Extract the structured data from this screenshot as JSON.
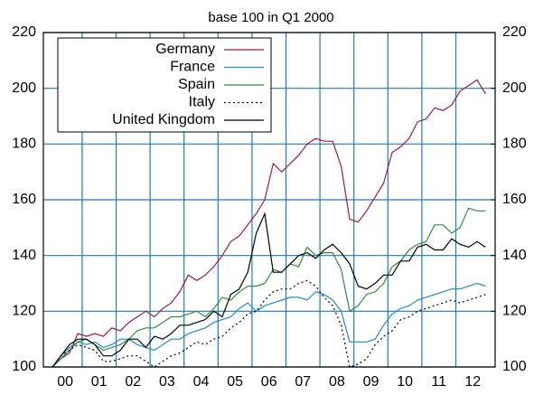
{
  "chart_data": {
    "type": "line",
    "title": "base 100 in Q1 2000",
    "categories": [
      null,
      "00",
      null,
      null,
      null,
      "01",
      null,
      null,
      null,
      "02",
      null,
      null,
      null,
      "03",
      null,
      null,
      null,
      "04",
      null,
      null,
      null,
      "05",
      null,
      null,
      null,
      "06",
      null,
      null,
      null,
      "07",
      null,
      null,
      null,
      "08",
      null,
      null,
      null,
      "09",
      null,
      null,
      null,
      "10",
      null,
      null,
      null,
      "11",
      null,
      null,
      null,
      "12",
      null,
      null
    ],
    "series": [
      {
        "name": "Germany",
        "color": "#a0174a",
        "dash": "solid",
        "values": [
          100,
          103,
          105,
          112,
          111,
          112,
          111,
          114,
          113,
          116,
          118,
          120,
          118,
          121,
          123,
          127,
          133,
          131,
          133,
          136,
          140,
          145,
          147,
          151,
          155,
          160,
          173,
          170,
          173,
          176,
          180,
          182,
          181,
          181,
          172,
          153,
          152,
          156,
          161,
          166,
          177,
          179,
          182,
          188,
          189,
          193,
          192,
          194,
          199,
          201,
          203,
          198
        ]
      },
      {
        "name": "France",
        "color": "#1f8bc8",
        "dash": "solid",
        "values": [
          100,
          104,
          107,
          109,
          108,
          109,
          107,
          108,
          110,
          110,
          108,
          107,
          106,
          108,
          110,
          110,
          112,
          113,
          114,
          116,
          117,
          118,
          121,
          123,
          120,
          122,
          123,
          124,
          125,
          125,
          124,
          127,
          126,
          124,
          120,
          109,
          109,
          109,
          110,
          115,
          119,
          121,
          122,
          124,
          125,
          126,
          127,
          128,
          128,
          129,
          130,
          129
        ]
      },
      {
        "name": "Spain",
        "color": "#2f8f3a",
        "dash": "solid",
        "values": [
          100,
          103,
          106,
          109,
          110,
          108,
          106,
          107,
          108,
          110,
          113,
          114,
          114,
          116,
          118,
          118,
          119,
          120,
          118,
          121,
          125,
          124,
          127,
          129,
          129,
          130,
          135,
          134,
          137,
          136,
          143,
          140,
          141,
          141,
          135,
          120,
          122,
          126,
          127,
          130,
          136,
          138,
          142,
          144,
          145,
          151,
          151,
          148,
          150,
          157,
          156,
          156
        ]
      },
      {
        "name": "Italy",
        "color": "#000000",
        "dash": "dotted",
        "values": [
          100,
          104,
          106,
          108,
          107,
          106,
          102,
          102,
          103,
          104,
          104,
          102,
          100,
          102,
          104,
          105,
          107,
          109,
          108,
          110,
          111,
          114,
          116,
          119,
          120,
          124,
          127,
          128,
          128,
          130,
          131,
          129,
          125,
          122,
          115,
          100,
          101,
          103,
          108,
          111,
          113,
          117,
          118,
          120,
          121,
          122,
          123,
          124,
          123,
          124,
          125,
          126
        ]
      },
      {
        "name": "United Kingdom",
        "color": "#000000",
        "dash": "solid",
        "values": [
          100,
          104,
          108,
          110,
          110,
          108,
          104,
          104,
          106,
          110,
          110,
          107,
          111,
          110,
          112,
          115,
          115,
          116,
          117,
          120,
          118,
          126,
          128,
          134,
          148,
          155,
          134,
          134,
          137,
          140,
          141,
          139,
          142,
          144,
          141,
          137,
          129,
          128,
          130,
          133,
          133,
          138,
          138,
          143,
          144,
          142,
          142,
          146,
          144,
          143,
          145,
          143
        ]
      }
    ],
    "ylim": [
      100,
      220
    ],
    "yticks": [
      100,
      120,
      140,
      160,
      180,
      200,
      220
    ],
    "y2lim": [
      100,
      220
    ],
    "y2ticks": [
      100,
      120,
      140,
      160,
      180,
      200,
      220
    ],
    "grid": true,
    "grid_color": "#1f7ab8",
    "legend": "top-left"
  }
}
